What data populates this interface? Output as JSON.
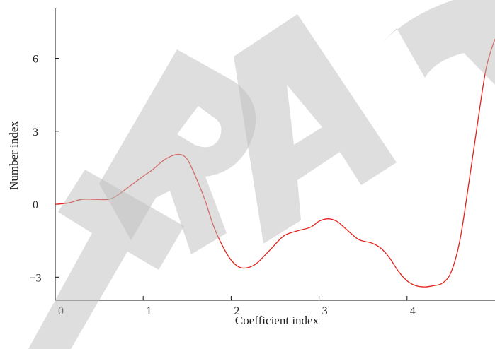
{
  "chart_data": {
    "type": "line",
    "title": "",
    "xlabel": "Coefficient index",
    "ylabel": "Number index",
    "xlim": [
      0,
      5
    ],
    "ylim": [
      -3.95,
      8.05
    ],
    "grid": false,
    "legend": "none",
    "x_ticks": [
      {
        "value": 0,
        "label": "0"
      },
      {
        "value": 1,
        "label": "1"
      },
      {
        "value": 2,
        "label": "2"
      },
      {
        "value": 3,
        "label": "3"
      },
      {
        "value": 4,
        "label": "4"
      }
    ],
    "y_ticks": [
      {
        "value": -3,
        "label": "−3"
      },
      {
        "value": 0,
        "label": "0"
      },
      {
        "value": 3,
        "label": "3"
      },
      {
        "value": 6,
        "label": "6"
      }
    ],
    "series": [
      {
        "color": "#e3221b",
        "x": [
          0,
          0.15,
          0.3,
          0.45,
          0.6,
          0.7,
          0.85,
          1.0,
          1.1,
          1.25,
          1.4,
          1.5,
          1.6,
          1.7,
          1.8,
          1.9,
          2.0,
          2.1,
          2.2,
          2.3,
          2.45,
          2.6,
          2.75,
          2.9,
          3.0,
          3.1,
          3.2,
          3.3,
          3.45,
          3.6,
          3.7,
          3.8,
          3.9,
          4.0,
          4.1,
          4.2,
          4.3,
          4.4,
          4.5,
          4.6,
          4.7,
          4.8,
          4.9,
          5.0
        ],
        "y": [
          0,
          0.05,
          0.2,
          0.2,
          0.2,
          0.35,
          0.75,
          1.15,
          1.4,
          1.85,
          2.05,
          1.85,
          1.1,
          0.2,
          -0.9,
          -1.7,
          -2.3,
          -2.6,
          -2.6,
          -2.4,
          -1.85,
          -1.3,
          -1.1,
          -0.95,
          -0.7,
          -0.6,
          -0.7,
          -1.0,
          -1.45,
          -1.6,
          -1.8,
          -2.2,
          -2.75,
          -3.15,
          -3.35,
          -3.4,
          -3.35,
          -3.25,
          -2.8,
          -1.5,
          0.8,
          3.3,
          5.6,
          6.8
        ]
      }
    ]
  }
}
